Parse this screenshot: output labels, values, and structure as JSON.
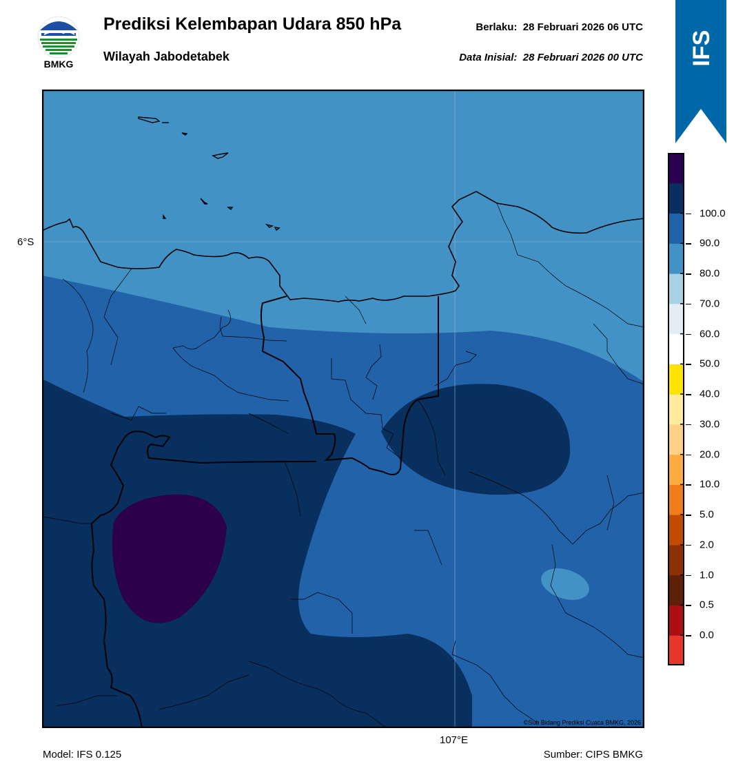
{
  "header": {
    "title": "Prediksi Kelembapan Udara 850 hPa",
    "region": "Wilayah Jabodetabek",
    "valid_label": "Berlaku:",
    "valid_time": "28 Februari 2026 06 UTC",
    "init_label": "Data Inisial:",
    "init_time": "28 Februari 2026 00 UTC"
  },
  "logo": {
    "text": "BMKG",
    "icon": "bmkg-logo-icon"
  },
  "ribbon": {
    "text": "IFS",
    "color": "#0068a8"
  },
  "map": {
    "lat_label": "6°S",
    "lon_label": "107°E",
    "credit": "©Sub Bidang Prediksi Cuaca BMKG, 2026",
    "colors": {
      "band_70_80": "#4292c6",
      "band_80_90": "#2262a8",
      "band_90_100": "#082f5e",
      "band_100": "#2c004a",
      "band_60_70": "#9ecae1"
    }
  },
  "colorbar": {
    "ticks": [
      "100.0",
      "90.0",
      "80.0",
      "70.0",
      "60.0",
      "50.0",
      "40.0",
      "30.0",
      "20.0",
      "10.0",
      "5.0",
      "2.0",
      "1.0",
      "0.5",
      "0.0"
    ],
    "colors": [
      "#e8362a",
      "#ab0f14",
      "#5d2008",
      "#8c3104",
      "#c14b03",
      "#ef7d1a",
      "#fdac40",
      "#fdd188",
      "#ffea9e",
      "#ffe400",
      "#ffffff",
      "#e2edf6",
      "#a9d1e5",
      "#4292c6",
      "#2163a9",
      "#082f5f",
      "#2b0050"
    ]
  },
  "footer": {
    "model": "Model: IFS 0.125",
    "source": "Sumber: CIPS BMKG"
  }
}
